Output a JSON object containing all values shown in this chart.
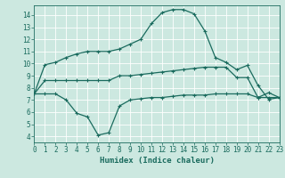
{
  "xlabel": "Humidex (Indice chaleur)",
  "bg_color": "#cce8e0",
  "grid_color": "#b0d4cc",
  "line_color": "#1a6b5e",
  "line1_x": [
    0,
    1,
    2,
    3,
    4,
    5,
    6,
    7,
    8,
    9,
    10,
    11,
    12,
    13,
    14,
    15,
    16,
    17,
    18,
    19,
    20,
    21,
    22,
    23
  ],
  "line1_y": [
    7.5,
    9.9,
    10.1,
    10.5,
    10.8,
    11.0,
    11.0,
    11.0,
    11.2,
    11.6,
    12.0,
    13.3,
    14.2,
    14.45,
    14.45,
    14.1,
    12.7,
    10.5,
    10.1,
    9.5,
    9.85,
    8.2,
    7.05,
    7.2
  ],
  "line2_x": [
    0,
    1,
    2,
    3,
    4,
    5,
    6,
    7,
    8,
    9,
    10,
    11,
    12,
    13,
    14,
    15,
    16,
    17,
    18,
    19,
    20,
    21,
    22,
    23
  ],
  "line2_y": [
    7.5,
    8.6,
    8.6,
    8.6,
    8.6,
    8.6,
    8.6,
    8.6,
    9.0,
    9.0,
    9.1,
    9.2,
    9.3,
    9.4,
    9.5,
    9.6,
    9.7,
    9.7,
    9.7,
    8.85,
    8.85,
    7.2,
    7.2,
    7.2
  ],
  "line3_x": [
    0,
    1,
    2,
    3,
    4,
    5,
    6,
    7,
    8,
    9,
    10,
    11,
    12,
    13,
    14,
    15,
    16,
    17,
    18,
    19,
    20,
    21,
    22,
    23
  ],
  "line3_y": [
    7.5,
    7.5,
    7.5,
    7.0,
    5.9,
    5.6,
    4.1,
    4.3,
    6.5,
    7.0,
    7.1,
    7.2,
    7.2,
    7.3,
    7.4,
    7.4,
    7.4,
    7.5,
    7.5,
    7.5,
    7.5,
    7.2,
    7.6,
    7.2
  ],
  "xlim": [
    0,
    23
  ],
  "ylim": [
    3.5,
    14.8
  ],
  "yticks": [
    4,
    5,
    6,
    7,
    8,
    9,
    10,
    11,
    12,
    13,
    14
  ],
  "xticks": [
    0,
    1,
    2,
    3,
    4,
    5,
    6,
    7,
    8,
    9,
    10,
    11,
    12,
    13,
    14,
    15,
    16,
    17,
    18,
    19,
    20,
    21,
    22,
    23
  ],
  "marker": "+",
  "markersize": 3.5,
  "linewidth": 0.9,
  "tick_fontsize": 5.5,
  "xlabel_fontsize": 6.5
}
